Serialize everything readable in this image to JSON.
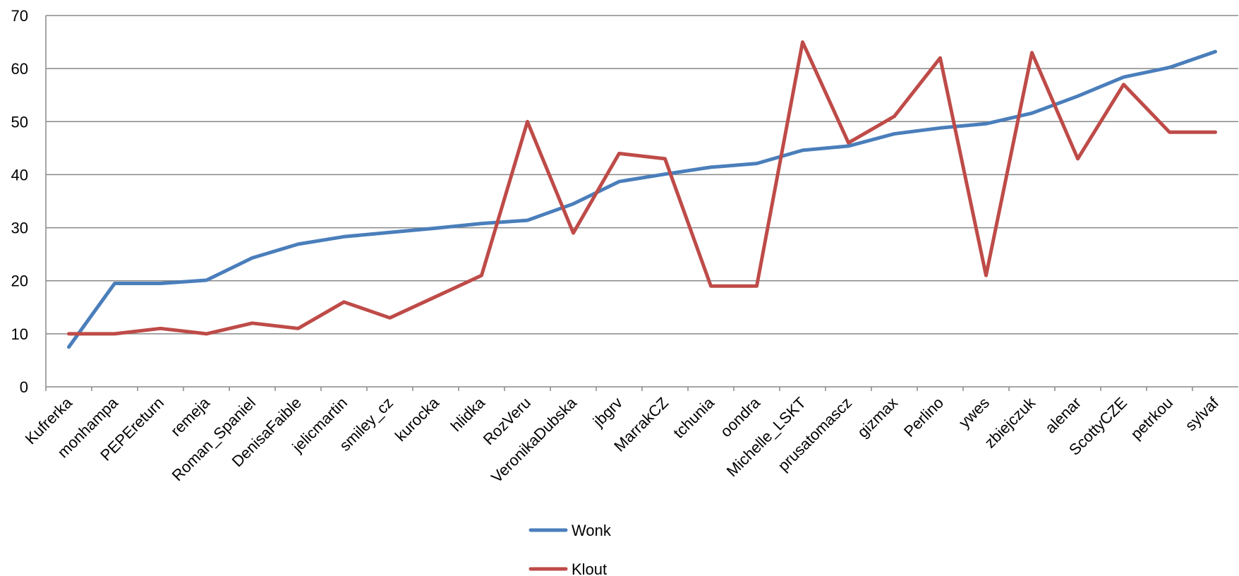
{
  "chart_data": {
    "type": "line",
    "title": "",
    "xlabel": "",
    "ylabel": "",
    "categories": [
      "Kufrerka",
      "monhampa",
      "PEPEreturn",
      "remeja",
      "Roman_Spaniel",
      "DenisaFaible",
      "jelicmartin",
      "smiley_cz",
      "kurocka",
      "hlidka",
      "RozVeru",
      "VeronikaDubska",
      "jbgrv",
      "MarrakCZ",
      "tchunia",
      "oondra",
      "Michelle_LSKT",
      "prusatomascz",
      "gizmax",
      "Perlino",
      "ywes",
      "zbiejczuk",
      "alenar",
      "ScottyCZE",
      "petrkou",
      "sylvaf"
    ],
    "series": [
      {
        "name": "Wonk",
        "color": "#4a7ebb",
        "values": [
          7.5,
          19.5,
          19.5,
          20.1,
          24.3,
          26.9,
          28.3,
          29.1,
          29.9,
          30.8,
          31.4,
          34.5,
          38.7,
          40.1,
          41.4,
          42.1,
          44.6,
          45.4,
          47.7,
          48.8,
          49.6,
          51.6,
          54.8,
          58.4,
          60.2,
          63.2
        ]
      },
      {
        "name": "Klout",
        "color": "#be4b48",
        "values": [
          10,
          10,
          11,
          10,
          12,
          11,
          16,
          13,
          17,
          21,
          50,
          29,
          44,
          43,
          19,
          19,
          65,
          46,
          51,
          62,
          21,
          63,
          43,
          57,
          48,
          48
        ]
      }
    ],
    "ylim": [
      0,
      70
    ],
    "yticks": [
      0,
      10,
      20,
      30,
      40,
      50,
      60,
      70
    ],
    "grid": true,
    "legend_position": "bottom"
  }
}
